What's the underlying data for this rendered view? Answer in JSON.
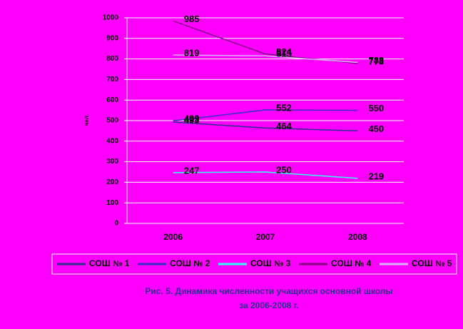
{
  "chart_data": {
    "type": "line",
    "y_label": "чел.",
    "categories": [
      "2006",
      "2007",
      "2008"
    ],
    "series": [
      {
        "name": "СОШ № 1",
        "color": "#2e2e8f",
        "values": [
          493,
          464,
          450
        ]
      },
      {
        "name": "СОШ № 2",
        "color": "#3a2fc0",
        "values": [
          499,
          552,
          550
        ]
      },
      {
        "name": "СОШ № 3",
        "color": "#33ffff",
        "values": [
          247,
          250,
          219
        ]
      },
      {
        "name": "СОШ № 4",
        "color": "#800080",
        "values": [
          985,
          824,
          778
        ]
      },
      {
        "name": "СОШ № 5",
        "color": "#d9b3ff",
        "values": [
          819,
          815,
          783
        ]
      }
    ],
    "ylim": [
      0,
      1000
    ],
    "yticks": [
      0,
      100,
      200,
      300,
      400,
      500,
      600,
      700,
      800,
      900,
      1000
    ],
    "grid": true,
    "caption": [
      "Рис. 5. Динамика численности учащихся основной школы",
      "за 2006-2008 г."
    ]
  }
}
